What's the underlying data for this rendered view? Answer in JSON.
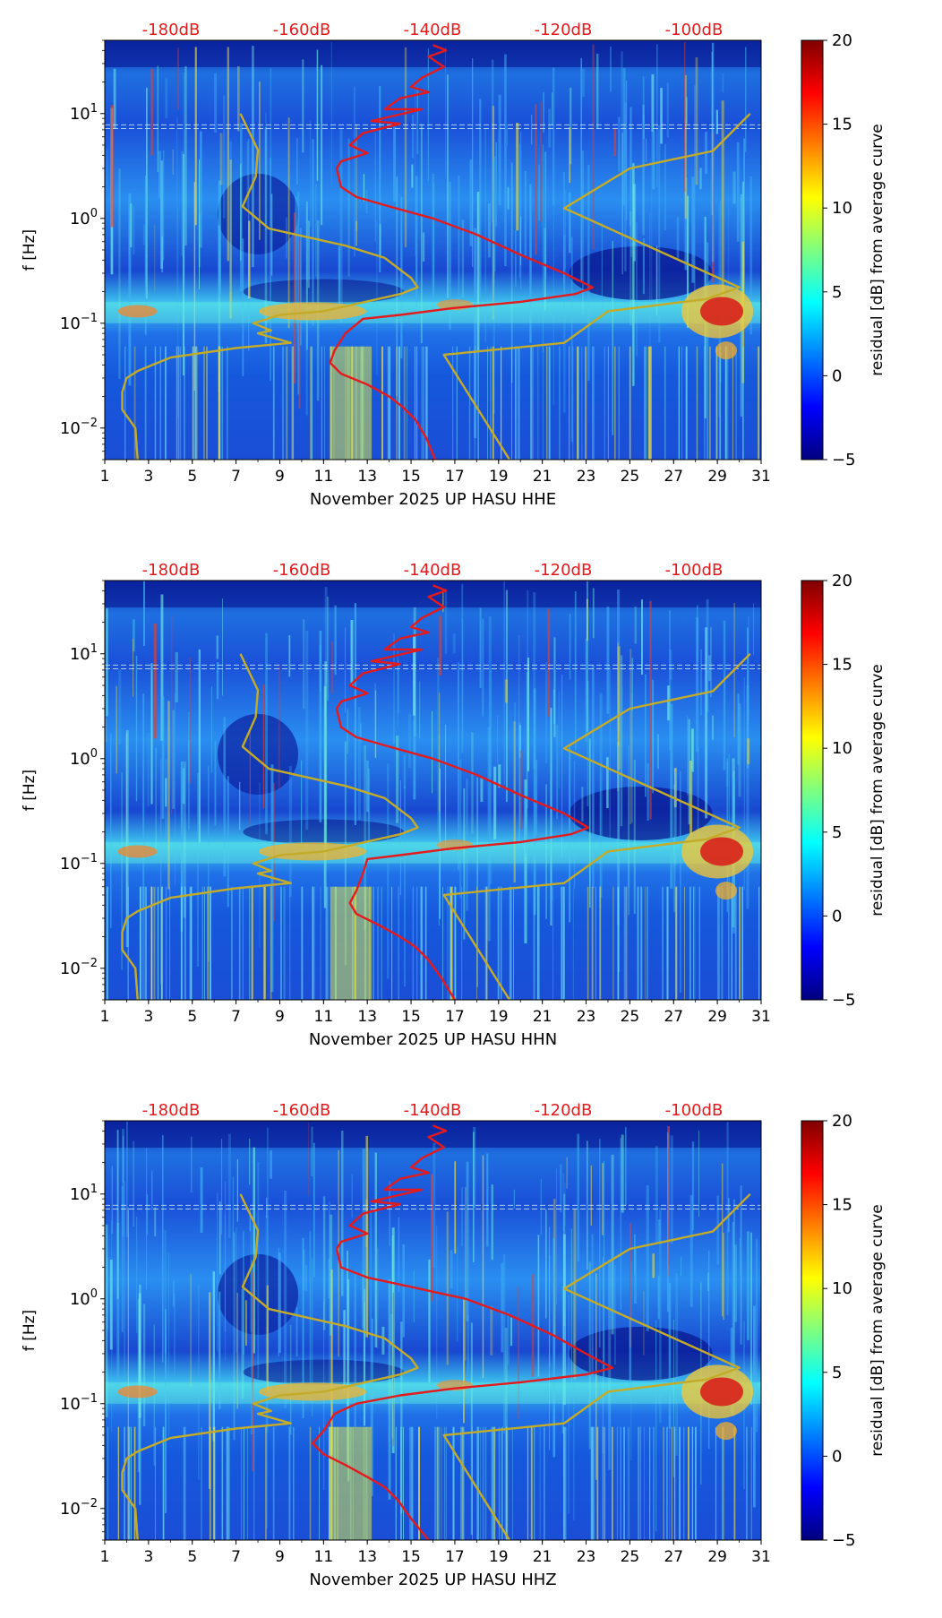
{
  "chart_data": [
    {
      "type": "heatmap",
      "component": "HHE",
      "xlabel": "November 2025 UP HASU  HHE",
      "ylabel": "f [Hz]",
      "colorbar_label": "residual [dB] from average curve",
      "x_ticks": [
        "1",
        "3",
        "5",
        "7",
        "9",
        "11",
        "13",
        "15",
        "17",
        "19",
        "21",
        "23",
        "25",
        "27",
        "29",
        "31"
      ],
      "x_range": [
        1,
        31
      ],
      "y_scale": "log",
      "y_range": [
        0.005,
        50
      ],
      "y_tick_values": [
        0.01,
        0.1,
        1,
        10
      ],
      "y_tick_labels": [
        {
          "base": "10",
          "exp": "−2"
        },
        {
          "base": "10",
          "exp": "−1"
        },
        {
          "base": "10",
          "exp": "0"
        },
        {
          "base": "10",
          "exp": "1"
        }
      ],
      "colorbar_ticks": [
        "−5",
        "0",
        "5",
        "10",
        "15",
        "20"
      ],
      "colorbar_range": [
        -5,
        20
      ],
      "db_scale_labels": [
        "-180dB",
        "-160dB",
        "-140dB",
        "-120dB",
        "-100dB"
      ],
      "series": [
        {
          "name": "median PSD",
          "color": "#e41a1c",
          "points": [
            [
              16.0,
              45
            ],
            [
              16.6,
              40
            ],
            [
              15.8,
              35
            ],
            [
              16.5,
              28
            ],
            [
              15.5,
              22
            ],
            [
              15.0,
              18
            ],
            [
              15.8,
              16
            ],
            [
              14.5,
              14
            ],
            [
              13.8,
              11
            ],
            [
              15.5,
              11
            ],
            [
              13.2,
              8.5
            ],
            [
              14.5,
              8
            ],
            [
              12.8,
              6.5
            ],
            [
              12.2,
              5
            ],
            [
              13.0,
              4.2
            ],
            [
              11.8,
              3.5
            ],
            [
              11.6,
              3
            ],
            [
              11.8,
              2
            ],
            [
              12.5,
              1.6
            ],
            [
              14.0,
              1.3
            ],
            [
              16.0,
              1.0
            ],
            [
              18.0,
              0.7
            ],
            [
              20.0,
              0.45
            ],
            [
              22.0,
              0.3
            ],
            [
              23.3,
              0.22
            ],
            [
              22.5,
              0.19
            ],
            [
              20.0,
              0.16
            ],
            [
              17.0,
              0.14
            ],
            [
              14.5,
              0.12
            ],
            [
              12.8,
              0.11
            ],
            [
              12.0,
              0.08
            ],
            [
              11.5,
              0.055
            ],
            [
              11.3,
              0.042
            ],
            [
              11.8,
              0.033
            ],
            [
              13.0,
              0.026
            ],
            [
              14.0,
              0.02
            ],
            [
              14.6,
              0.016
            ],
            [
              15.2,
              0.012
            ],
            [
              15.7,
              0.008
            ],
            [
              16.1,
              0.005
            ]
          ]
        },
        {
          "name": "model bounds",
          "color": "#c4ab28",
          "points": [
            [
              19.5,
              0.005
            ],
            [
              16.5,
              0.05
            ],
            [
              22.0,
              0.065
            ],
            [
              24.0,
              0.13
            ],
            [
              28.5,
              0.17
            ],
            [
              30.0,
              0.22
            ],
            [
              22.0,
              1.25
            ],
            [
              25.0,
              3
            ],
            [
              28.8,
              4.4
            ],
            [
              30.5,
              10
            ],
            [
              null,
              null
            ],
            [
              7.2,
              10
            ],
            [
              8.0,
              4.5
            ],
            [
              7.9,
              2.5
            ],
            [
              7.3,
              1.3
            ],
            [
              8.5,
              0.8
            ],
            [
              12.0,
              0.55
            ],
            [
              13.8,
              0.42
            ],
            [
              15.0,
              0.27
            ],
            [
              15.3,
              0.22
            ],
            [
              14.5,
              0.19
            ],
            [
              11.0,
              0.13
            ],
            [
              9.0,
              0.12
            ],
            [
              7.8,
              0.1
            ],
            [
              8.6,
              0.085
            ],
            [
              8.0,
              0.08
            ],
            [
              9.5,
              0.065
            ],
            [
              7.0,
              0.058
            ],
            [
              4.0,
              0.047
            ],
            [
              2.5,
              0.035
            ],
            [
              2.0,
              0.03
            ],
            [
              1.8,
              0.022
            ],
            [
              1.8,
              0.015
            ],
            [
              2.4,
              0.01
            ],
            [
              2.5,
              0.005
            ]
          ]
        }
      ]
    },
    {
      "type": "heatmap",
      "component": "HHN",
      "xlabel": "November 2025 UP HASU  HHN",
      "ylabel": "f [Hz]",
      "colorbar_label": "residual [dB] from average curve",
      "x_ticks": [
        "1",
        "3",
        "5",
        "7",
        "9",
        "11",
        "13",
        "15",
        "17",
        "19",
        "21",
        "23",
        "25",
        "27",
        "29",
        "31"
      ],
      "x_range": [
        1,
        31
      ],
      "y_scale": "log",
      "y_range": [
        0.005,
        50
      ],
      "y_tick_values": [
        0.01,
        0.1,
        1,
        10
      ],
      "y_tick_labels": [
        {
          "base": "10",
          "exp": "−2"
        },
        {
          "base": "10",
          "exp": "−1"
        },
        {
          "base": "10",
          "exp": "0"
        },
        {
          "base": "10",
          "exp": "1"
        }
      ],
      "colorbar_ticks": [
        "−5",
        "0",
        "5",
        "10",
        "15",
        "20"
      ],
      "colorbar_range": [
        -5,
        20
      ],
      "db_scale_labels": [
        "-180dB",
        "-160dB",
        "-140dB",
        "-120dB",
        "-100dB"
      ],
      "series": [
        {
          "name": "median PSD",
          "color": "#e41a1c",
          "points": [
            [
              16.0,
              45
            ],
            [
              16.6,
              40
            ],
            [
              15.8,
              35
            ],
            [
              16.5,
              28
            ],
            [
              15.5,
              22
            ],
            [
              15.0,
              18
            ],
            [
              15.8,
              16
            ],
            [
              14.5,
              14
            ],
            [
              13.8,
              11
            ],
            [
              15.5,
              11
            ],
            [
              13.2,
              8.5
            ],
            [
              14.5,
              8
            ],
            [
              12.8,
              6.5
            ],
            [
              12.2,
              5
            ],
            [
              13.0,
              4.2
            ],
            [
              11.8,
              3.5
            ],
            [
              11.6,
              3
            ],
            [
              11.8,
              2
            ],
            [
              12.5,
              1.6
            ],
            [
              14.0,
              1.3
            ],
            [
              16.0,
              1.0
            ],
            [
              18.0,
              0.7
            ],
            [
              20.0,
              0.45
            ],
            [
              22.0,
              0.3
            ],
            [
              23.1,
              0.22
            ],
            [
              22.3,
              0.19
            ],
            [
              20.0,
              0.16
            ],
            [
              17.0,
              0.14
            ],
            [
              14.5,
              0.12
            ],
            [
              13.0,
              0.11
            ],
            [
              12.8,
              0.08
            ],
            [
              12.5,
              0.055
            ],
            [
              12.2,
              0.042
            ],
            [
              12.5,
              0.033
            ],
            [
              13.5,
              0.026
            ],
            [
              14.5,
              0.02
            ],
            [
              15.2,
              0.016
            ],
            [
              15.8,
              0.012
            ],
            [
              16.4,
              0.008
            ],
            [
              17.0,
              0.005
            ]
          ]
        },
        {
          "name": "model bounds",
          "color": "#c4ab28",
          "points": [
            [
              19.5,
              0.005
            ],
            [
              16.5,
              0.05
            ],
            [
              22.0,
              0.065
            ],
            [
              24.0,
              0.13
            ],
            [
              28.5,
              0.17
            ],
            [
              30.0,
              0.22
            ],
            [
              22.0,
              1.25
            ],
            [
              25.0,
              3
            ],
            [
              28.8,
              4.4
            ],
            [
              30.5,
              10
            ],
            [
              null,
              null
            ],
            [
              7.2,
              10
            ],
            [
              8.0,
              4.5
            ],
            [
              7.9,
              2.5
            ],
            [
              7.3,
              1.3
            ],
            [
              8.5,
              0.8
            ],
            [
              12.0,
              0.55
            ],
            [
              13.8,
              0.42
            ],
            [
              15.0,
              0.27
            ],
            [
              15.3,
              0.22
            ],
            [
              14.5,
              0.19
            ],
            [
              11.0,
              0.13
            ],
            [
              9.0,
              0.12
            ],
            [
              7.8,
              0.1
            ],
            [
              8.6,
              0.085
            ],
            [
              8.0,
              0.08
            ],
            [
              9.5,
              0.065
            ],
            [
              7.0,
              0.058
            ],
            [
              4.0,
              0.047
            ],
            [
              2.5,
              0.035
            ],
            [
              2.0,
              0.03
            ],
            [
              1.8,
              0.022
            ],
            [
              1.8,
              0.015
            ],
            [
              2.4,
              0.01
            ],
            [
              2.5,
              0.005
            ]
          ]
        }
      ]
    },
    {
      "type": "heatmap",
      "component": "HHZ",
      "xlabel": "November 2025 UP HASU  HHZ",
      "ylabel": "f [Hz]",
      "colorbar_label": "residual [dB] from average curve",
      "x_ticks": [
        "1",
        "3",
        "5",
        "7",
        "9",
        "11",
        "13",
        "15",
        "17",
        "19",
        "21",
        "23",
        "25",
        "27",
        "29",
        "31"
      ],
      "x_range": [
        1,
        31
      ],
      "y_scale": "log",
      "y_range": [
        0.005,
        50
      ],
      "y_tick_values": [
        0.01,
        0.1,
        1,
        10
      ],
      "y_tick_labels": [
        {
          "base": "10",
          "exp": "−2"
        },
        {
          "base": "10",
          "exp": "−1"
        },
        {
          "base": "10",
          "exp": "0"
        },
        {
          "base": "10",
          "exp": "1"
        }
      ],
      "colorbar_ticks": [
        "−5",
        "0",
        "5",
        "10",
        "15",
        "20"
      ],
      "colorbar_range": [
        -5,
        20
      ],
      "db_scale_labels": [
        "-180dB",
        "-160dB",
        "-140dB",
        "-120dB",
        "-100dB"
      ],
      "series": [
        {
          "name": "median PSD",
          "color": "#e41a1c",
          "points": [
            [
              16.0,
              45
            ],
            [
              16.6,
              40
            ],
            [
              15.8,
              35
            ],
            [
              16.5,
              28
            ],
            [
              15.5,
              22
            ],
            [
              15.0,
              18
            ],
            [
              15.8,
              16
            ],
            [
              14.5,
              14
            ],
            [
              13.8,
              11
            ],
            [
              15.5,
              11
            ],
            [
              13.2,
              8.5
            ],
            [
              14.5,
              8
            ],
            [
              12.8,
              6.5
            ],
            [
              12.2,
              5
            ],
            [
              13.0,
              4.2
            ],
            [
              11.8,
              3.5
            ],
            [
              11.6,
              3
            ],
            [
              11.8,
              2
            ],
            [
              13.0,
              1.6
            ],
            [
              15.0,
              1.3
            ],
            [
              17.5,
              1.0
            ],
            [
              19.5,
              0.7
            ],
            [
              21.5,
              0.45
            ],
            [
              23.0,
              0.3
            ],
            [
              24.2,
              0.22
            ],
            [
              23.0,
              0.19
            ],
            [
              20.0,
              0.16
            ],
            [
              17.0,
              0.14
            ],
            [
              14.5,
              0.12
            ],
            [
              12.5,
              0.1
            ],
            [
              11.5,
              0.08
            ],
            [
              11.0,
              0.055
            ],
            [
              10.5,
              0.042
            ],
            [
              11.0,
              0.033
            ],
            [
              12.0,
              0.026
            ],
            [
              13.0,
              0.02
            ],
            [
              13.8,
              0.016
            ],
            [
              14.4,
              0.012
            ],
            [
              15.0,
              0.008
            ],
            [
              15.8,
              0.005
            ]
          ]
        },
        {
          "name": "model bounds",
          "color": "#c4ab28",
          "points": [
            [
              19.5,
              0.005
            ],
            [
              16.5,
              0.05
            ],
            [
              22.0,
              0.065
            ],
            [
              24.0,
              0.13
            ],
            [
              28.5,
              0.17
            ],
            [
              30.0,
              0.22
            ],
            [
              22.0,
              1.25
            ],
            [
              25.0,
              3
            ],
            [
              28.8,
              4.4
            ],
            [
              30.5,
              10
            ],
            [
              null,
              null
            ],
            [
              7.2,
              10
            ],
            [
              8.0,
              4.5
            ],
            [
              7.9,
              2.5
            ],
            [
              7.3,
              1.3
            ],
            [
              8.5,
              0.8
            ],
            [
              12.0,
              0.55
            ],
            [
              13.8,
              0.42
            ],
            [
              15.0,
              0.27
            ],
            [
              15.3,
              0.22
            ],
            [
              14.5,
              0.19
            ],
            [
              11.0,
              0.13
            ],
            [
              9.0,
              0.12
            ],
            [
              7.8,
              0.1
            ],
            [
              8.6,
              0.085
            ],
            [
              8.0,
              0.08
            ],
            [
              9.5,
              0.065
            ],
            [
              7.0,
              0.058
            ],
            [
              4.0,
              0.047
            ],
            [
              2.5,
              0.035
            ],
            [
              2.0,
              0.03
            ],
            [
              1.8,
              0.022
            ],
            [
              1.8,
              0.015
            ],
            [
              2.4,
              0.01
            ],
            [
              2.5,
              0.005
            ]
          ]
        }
      ]
    }
  ],
  "colors": {
    "db_label": "#e41a1c",
    "axis": "#000000",
    "colormap": [
      "#00007f",
      "#0000ff",
      "#007fff",
      "#00ffff",
      "#7fff7f",
      "#ffff00",
      "#ff7f00",
      "#ff0000",
      "#7f0000"
    ]
  }
}
